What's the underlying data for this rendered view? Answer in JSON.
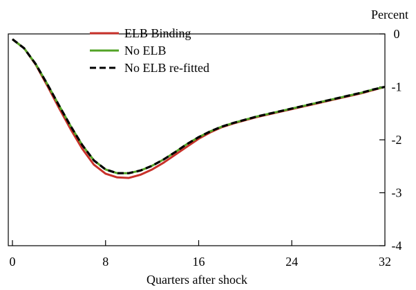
{
  "chart_data": {
    "type": "line",
    "title": "",
    "xlabel": "Quarters after shock",
    "ylabel": "Percent",
    "xlim": [
      0,
      32
    ],
    "ylim": [
      -4,
      0
    ],
    "x_ticks": [
      0,
      8,
      16,
      24,
      32
    ],
    "y_ticks": [
      0,
      -1,
      -2,
      -3,
      -4
    ],
    "grid": false,
    "legend_position": "top-left",
    "x": [
      0,
      1,
      2,
      3,
      4,
      5,
      6,
      7,
      8,
      9,
      10,
      11,
      12,
      13,
      14,
      15,
      16,
      17,
      18,
      19,
      20,
      21,
      22,
      23,
      24,
      25,
      26,
      27,
      28,
      29,
      30,
      31,
      32
    ],
    "series": [
      {
        "name": "ELB Binding",
        "color": "#c8312a",
        "style": "solid",
        "values": [
          -0.1,
          -0.27,
          -0.58,
          -0.98,
          -1.4,
          -1.8,
          -2.17,
          -2.47,
          -2.64,
          -2.71,
          -2.72,
          -2.66,
          -2.56,
          -2.43,
          -2.28,
          -2.13,
          -1.98,
          -1.86,
          -1.76,
          -1.69,
          -1.63,
          -1.57,
          -1.52,
          -1.47,
          -1.42,
          -1.37,
          -1.32,
          -1.27,
          -1.22,
          -1.17,
          -1.12,
          -1.06,
          -1.0
        ]
      },
      {
        "name": "No ELB",
        "color": "#52a326",
        "style": "solid",
        "values": [
          -0.1,
          -0.27,
          -0.57,
          -0.95,
          -1.35,
          -1.74,
          -2.1,
          -2.39,
          -2.56,
          -2.63,
          -2.63,
          -2.58,
          -2.49,
          -2.37,
          -2.23,
          -2.08,
          -1.95,
          -1.84,
          -1.75,
          -1.68,
          -1.62,
          -1.56,
          -1.51,
          -1.46,
          -1.41,
          -1.36,
          -1.31,
          -1.26,
          -1.21,
          -1.16,
          -1.11,
          -1.05,
          -1.0
        ]
      },
      {
        "name": "No ELB re-fitted",
        "color": "#000000",
        "style": "dashed",
        "values": [
          -0.1,
          -0.27,
          -0.57,
          -0.95,
          -1.35,
          -1.74,
          -2.1,
          -2.39,
          -2.56,
          -2.63,
          -2.63,
          -2.58,
          -2.49,
          -2.37,
          -2.23,
          -2.08,
          -1.95,
          -1.84,
          -1.75,
          -1.68,
          -1.62,
          -1.56,
          -1.51,
          -1.46,
          -1.41,
          -1.36,
          -1.31,
          -1.26,
          -1.21,
          -1.16,
          -1.11,
          -1.05,
          -1.0
        ]
      }
    ]
  }
}
